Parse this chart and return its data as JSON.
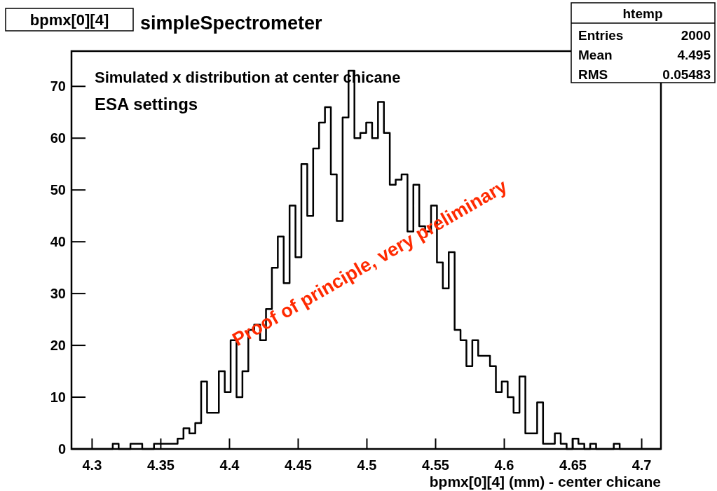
{
  "chart_data": {
    "type": "histogram",
    "title": "bpmx[0][4]",
    "subtitle": "simpleSpectrometer",
    "xlabel": "bpmx[0][4] (mm) - center chicane",
    "color": "#000000",
    "annotations": [
      "Simulated x distribution at center chicane",
      "ESA settings",
      "Proof of principle, very preliminary",
      "htemp",
      "Entries",
      "2000",
      "Mean",
      "4.495",
      "RMS",
      "0.05483"
    ],
    "bins": [
      4.285,
      4.28929,
      4.29358,
      4.29787,
      4.30216,
      4.30645,
      4.31074,
      4.31503,
      4.31932,
      4.32361,
      4.3279,
      4.33219,
      4.33648,
      4.34077,
      4.34506,
      4.34935,
      4.35364,
      4.35793,
      4.36222,
      4.36651,
      4.3708,
      4.37509,
      4.37938,
      4.38367,
      4.38796,
      4.39225,
      4.39654,
      4.40083,
      4.40512,
      4.40941,
      4.4137,
      4.41799,
      4.42228,
      4.42657,
      4.43086,
      4.43515,
      4.43944,
      4.44373,
      4.44802,
      4.45231,
      4.4566,
      4.46089,
      4.46518,
      4.46947,
      4.47376,
      4.47805,
      4.48234,
      4.48663,
      4.49092,
      4.49521,
      4.4995,
      4.50379,
      4.50808,
      4.51237,
      4.51666,
      4.52095,
      4.52524,
      4.52953,
      4.53382,
      4.53811,
      4.5424,
      4.54669,
      4.55098,
      4.55527,
      4.55956,
      4.56385,
      4.56814,
      4.57243,
      4.57672,
      4.58101,
      4.5853,
      4.58959,
      4.59388,
      4.59817,
      4.60246,
      4.60675,
      4.61104,
      4.61533,
      4.61962,
      4.62391,
      4.6282,
      4.63249,
      4.63678,
      4.64107,
      4.64536,
      4.64965,
      4.65394,
      4.65823,
      4.66252,
      4.66681,
      4.6711,
      4.67539,
      4.67968,
      4.68397,
      4.68826,
      4.69255,
      4.69684,
      4.70113,
      4.70542,
      4.70971,
      4.714
    ],
    "values": [
      0,
      0,
      0,
      0,
      0,
      0,
      0,
      1,
      0,
      0,
      1,
      1,
      0,
      0,
      1,
      1,
      1,
      1,
      2,
      4,
      3,
      5,
      13,
      7,
      7,
      15,
      11,
      21,
      10,
      15,
      23,
      24,
      21,
      27,
      35,
      41,
      32,
      47,
      37,
      55,
      45,
      58,
      63,
      66,
      53,
      44,
      64,
      73,
      60,
      61,
      63,
      60,
      67,
      61,
      51,
      52,
      53,
      42,
      51,
      43,
      42,
      47,
      36,
      31,
      38,
      23,
      21,
      16,
      21,
      18,
      18,
      16,
      11,
      13,
      10,
      7,
      14,
      3,
      3,
      9,
      1,
      1,
      3,
      1,
      0,
      2,
      1,
      0,
      1,
      0,
      0,
      0,
      1,
      0,
      0,
      0,
      0,
      0,
      0,
      0
    ],
    "xlim": [
      4.285,
      4.714
    ],
    "xticks": [
      4.3,
      4.35,
      4.4,
      4.45,
      4.5,
      4.55,
      4.6,
      4.65,
      4.7
    ],
    "ylim": [
      0,
      76.8
    ],
    "yticks": [
      0,
      10,
      20,
      30,
      40,
      50,
      60,
      70
    ]
  }
}
